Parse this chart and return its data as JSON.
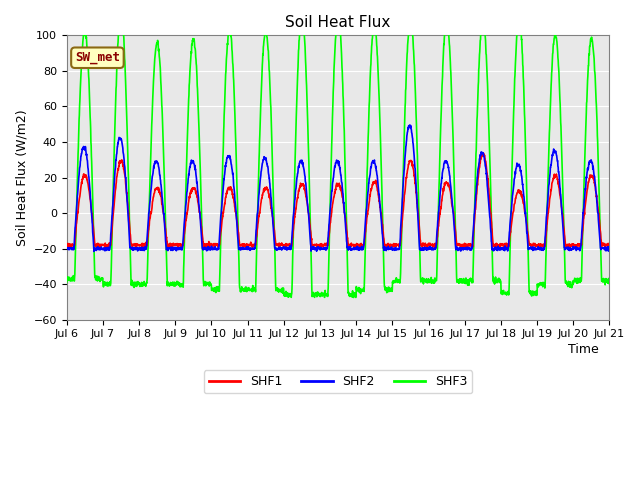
{
  "title": "Soil Heat Flux",
  "ylabel": "Soil Heat Flux (W/m2)",
  "xlabel": "Time",
  "annotation_text": "SW_met",
  "annotation_bg": "#FFFFC0",
  "annotation_border": "#8B6914",
  "annotation_text_color": "#8B0000",
  "ylim": [
    -60,
    100
  ],
  "legend_labels": [
    "SHF1",
    "SHF2",
    "SHF3"
  ],
  "colors": [
    "red",
    "blue",
    "lime"
  ],
  "bg_color": "#E8E8E8",
  "linewidth": 1.2,
  "tick_labels": [
    "Jul 6",
    "Jul 7",
    "Jul 8",
    "Jul 9",
    "Jul 10",
    "Jul 11",
    "Jul 12",
    "Jul 13",
    "Jul 14",
    "Jul 15",
    "Jul 16",
    "Jul 17",
    "Jul 18",
    "Jul 19",
    "Jul 20",
    "Jul 21"
  ],
  "num_days": 15,
  "points_per_day": 144,
  "yticks": [
    -60,
    -40,
    -20,
    0,
    20,
    40,
    60,
    80,
    100
  ]
}
